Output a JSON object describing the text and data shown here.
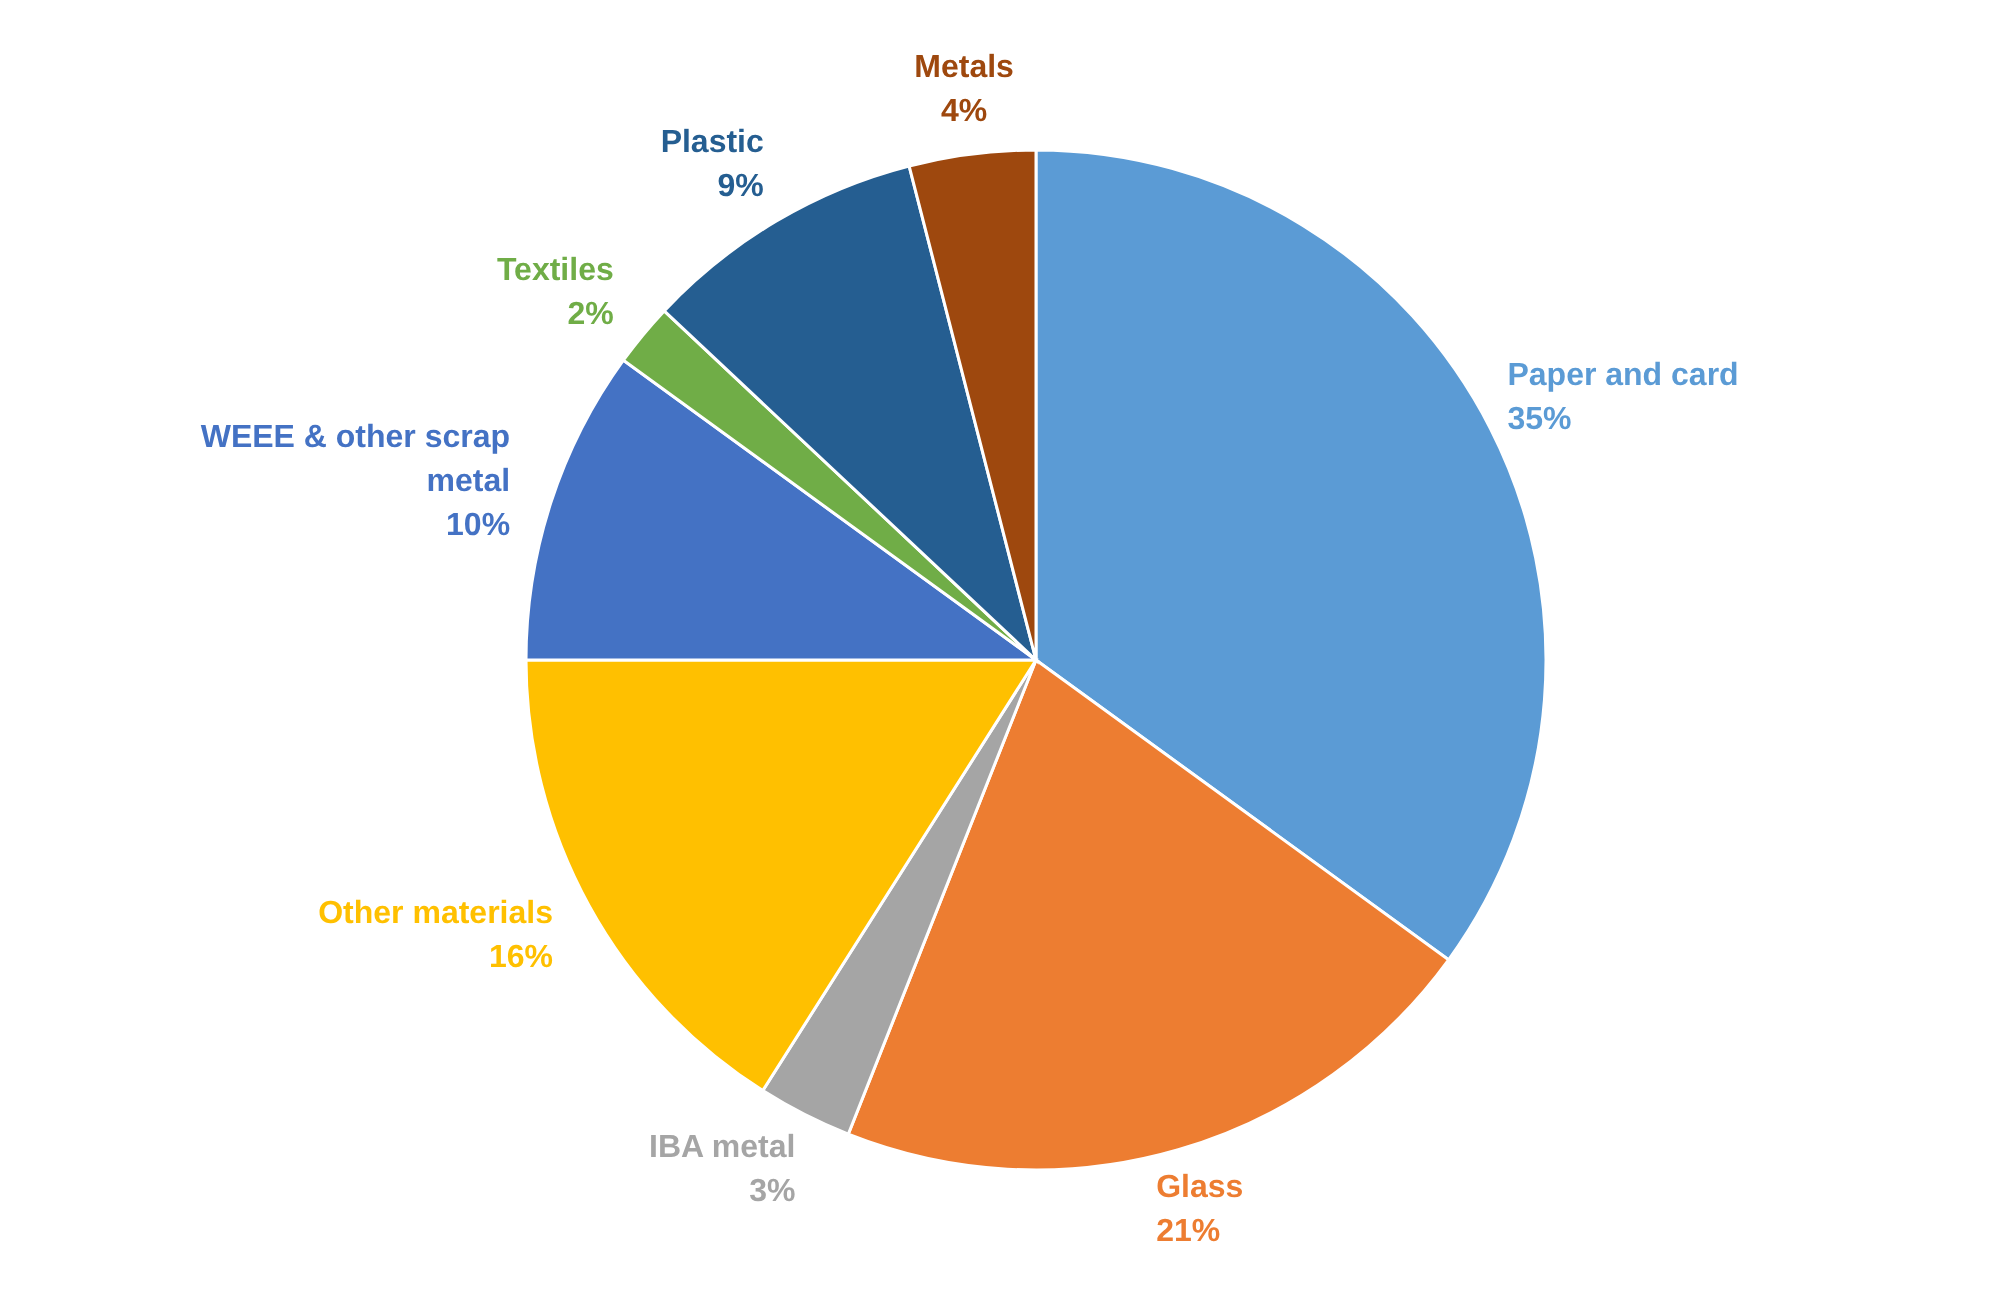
{
  "chart_data": {
    "type": "pie",
    "categories": [
      "Paper and card",
      "Glass",
      "IBA metal",
      "Other materials",
      "WEEE & other scrap metal",
      "Textiles",
      "Plastic",
      "Metals"
    ],
    "values": [
      35,
      21,
      3,
      16,
      10,
      2,
      9,
      4
    ],
    "value_labels": [
      "35%",
      "21%",
      "3%",
      "16%",
      "10%",
      "2%",
      "9%",
      "4%"
    ],
    "colors": [
      "#5b9bd5",
      "#ed7d31",
      "#a5a5a5",
      "#ffc000",
      "#4472c4",
      "#70ad47",
      "#255e91",
      "#9e480e"
    ]
  }
}
